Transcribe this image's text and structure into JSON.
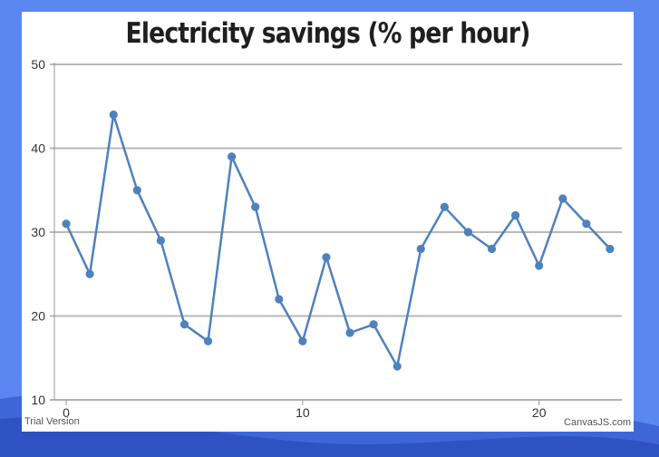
{
  "page": {
    "background_color": "#5b87f0",
    "card_color": "#ffffff",
    "watermark_left": "Trial Version",
    "watermark_right": "CanvasJS.com"
  },
  "chart_data": {
    "type": "line",
    "title": "Electricity savings (% per hour)",
    "xlabel": "",
    "ylabel": "",
    "xlim": [
      -0.5,
      23.5
    ],
    "ylim": [
      10,
      50
    ],
    "x_ticks": [
      0,
      10,
      20
    ],
    "y_ticks": [
      10,
      20,
      30,
      40,
      50
    ],
    "grid": true,
    "line_color": "#4f81bc",
    "series": [
      {
        "x": [
          0,
          1,
          2,
          3,
          4,
          5,
          6,
          7,
          8,
          9,
          10,
          11,
          12,
          13,
          14,
          15,
          16,
          17,
          18,
          19,
          20,
          21,
          22,
          23
        ],
        "values": [
          31,
          25,
          44,
          35,
          29,
          19,
          17,
          39,
          33,
          22,
          17,
          27,
          18,
          19,
          14,
          28,
          33,
          30,
          28,
          32,
          26,
          34,
          31,
          28
        ]
      }
    ]
  }
}
